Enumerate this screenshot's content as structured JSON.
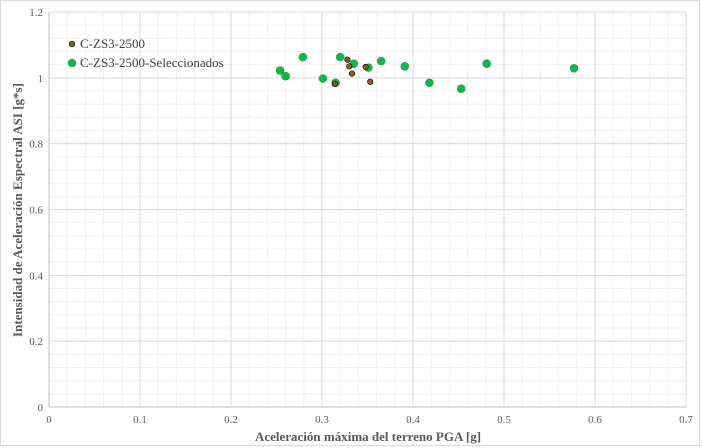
{
  "chart_data": {
    "type": "scatter",
    "title": "",
    "xlabel": "Aceleración máxima del terreno PGA [g]",
    "ylabel": "Intensidad de Aceleración Espectral ASI [g*s]",
    "xlim": [
      0,
      0.7
    ],
    "ylim": [
      0,
      1.2
    ],
    "x_ticks": [
      0,
      0.1,
      0.2,
      0.3,
      0.4,
      0.5,
      0.6,
      0.7
    ],
    "x_tick_labels": [
      "0",
      "0.1",
      "0.2",
      "0.3",
      "0.4",
      "0.5",
      "0.6",
      "0.7"
    ],
    "y_ticks": [
      0,
      0.2,
      0.4,
      0.6,
      0.8,
      1,
      1.2
    ],
    "y_tick_labels": [
      "0",
      "0.2",
      "0.4",
      "0.6",
      "0.8",
      "1",
      "1.2"
    ],
    "grid": true,
    "legend_position": "top-left",
    "series": [
      {
        "name": "C-ZS3-2500",
        "color": "#8B5A1E",
        "marker": "circle-small",
        "points": [
          {
            "x": 0.314,
            "y": 0.982
          },
          {
            "x": 0.328,
            "y": 1.055
          },
          {
            "x": 0.33,
            "y": 1.035
          },
          {
            "x": 0.333,
            "y": 1.013
          },
          {
            "x": 0.348,
            "y": 1.033
          },
          {
            "x": 0.353,
            "y": 0.988
          }
        ]
      },
      {
        "name": "C-ZS3-2500-Seleccionados",
        "color": "#1BAF50",
        "marker": "circle",
        "points": [
          {
            "x": 0.254,
            "y": 1.022
          },
          {
            "x": 0.26,
            "y": 1.005
          },
          {
            "x": 0.279,
            "y": 1.063
          },
          {
            "x": 0.301,
            "y": 0.998
          },
          {
            "x": 0.315,
            "y": 0.985
          },
          {
            "x": 0.32,
            "y": 1.063
          },
          {
            "x": 0.335,
            "y": 1.043
          },
          {
            "x": 0.351,
            "y": 1.031
          },
          {
            "x": 0.365,
            "y": 1.051
          },
          {
            "x": 0.391,
            "y": 1.035
          },
          {
            "x": 0.418,
            "y": 0.985
          },
          {
            "x": 0.453,
            "y": 0.967
          },
          {
            "x": 0.481,
            "y": 1.043
          },
          {
            "x": 0.577,
            "y": 1.029
          }
        ]
      }
    ]
  }
}
